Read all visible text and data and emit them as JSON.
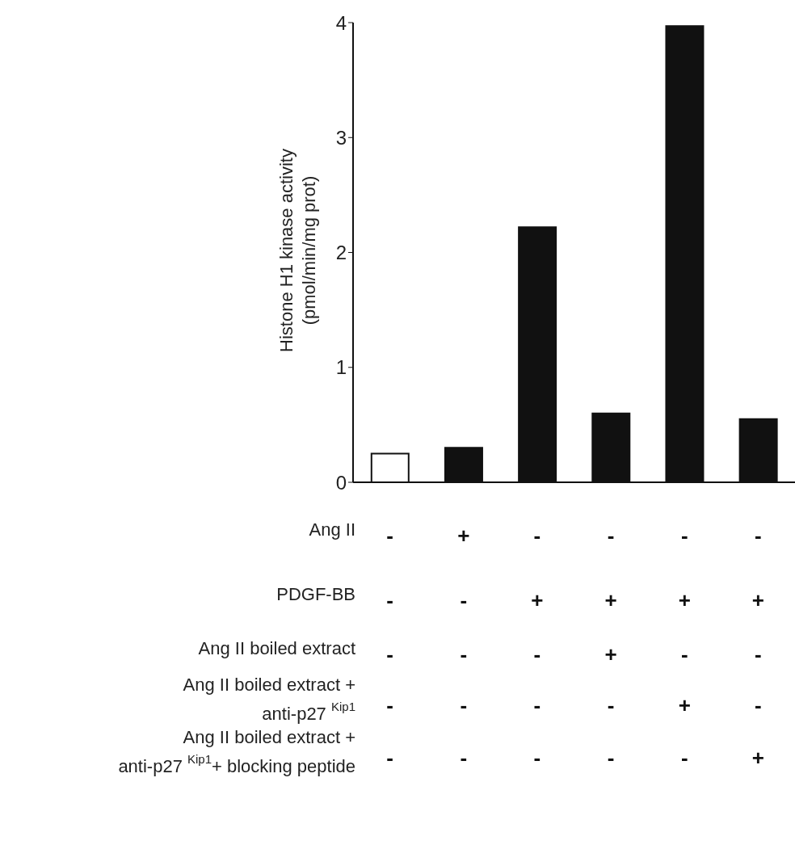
{
  "chart_data": {
    "type": "bar",
    "ylabel": "Histone H1 kinase activity\n(pmol/min/mg prot)",
    "categories": [
      "-\n-\n-\n-\n-",
      "+\n-\n-\n-\n-",
      "-\n+\n-\n-\n-",
      "-\n+\n+\n-\n-",
      "-\n+\n-\n+\n-",
      "-\n+\n-\n-\n+"
    ],
    "values": [
      0.25,
      0.3,
      2.22,
      0.6,
      3.97,
      0.55
    ],
    "colors": [
      "#ffffff",
      "#111111",
      "#111111",
      "#111111",
      "#111111",
      "#111111"
    ],
    "ylim": [
      0,
      4
    ],
    "yticks": [
      0,
      1,
      2,
      3,
      4
    ],
    "annotations": [
      "Ang II",
      "PDGF-BB",
      "Ang II boiled extract",
      "Ang II boiled extract  +\nanti-p27 $^{Kip1}$",
      "Ang II boiled extract  +\nanti-p27 $^{Kip1}$+ blocking peptide"
    ]
  }
}
